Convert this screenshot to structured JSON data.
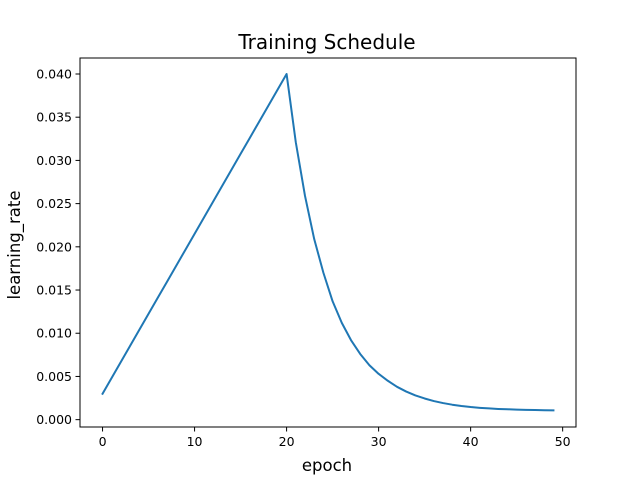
{
  "chart_data": {
    "type": "line",
    "title": "Training Schedule",
    "xlabel": "epoch",
    "ylabel": "learning_rate",
    "xlim": [
      -2.45,
      51.45
    ],
    "ylim": [
      -0.00085,
      0.04185
    ],
    "xticks": [
      0,
      10,
      20,
      30,
      40,
      50
    ],
    "xtick_labels": [
      "0",
      "10",
      "20",
      "30",
      "40",
      "50"
    ],
    "yticks": [
      0.0,
      0.005,
      0.01,
      0.015,
      0.02,
      0.025,
      0.03,
      0.035,
      0.04
    ],
    "ytick_labels": [
      "0.000",
      "0.005",
      "0.010",
      "0.015",
      "0.020",
      "0.025",
      "0.030",
      "0.035",
      "0.040"
    ],
    "grid": false,
    "series": [
      {
        "color": "#1f77b4",
        "x": [
          0,
          1,
          2,
          3,
          4,
          5,
          6,
          7,
          8,
          9,
          10,
          11,
          12,
          13,
          14,
          15,
          16,
          17,
          18,
          19,
          20,
          21,
          22,
          23,
          24,
          25,
          26,
          27,
          28,
          29,
          30,
          31,
          32,
          33,
          34,
          35,
          36,
          37,
          38,
          39,
          40,
          41,
          42,
          43,
          44,
          45,
          46,
          47,
          48,
          49
        ],
        "y": [
          0.003,
          0.00485,
          0.0067,
          0.00855,
          0.0104,
          0.01225,
          0.0141,
          0.01595,
          0.0178,
          0.01965,
          0.0215,
          0.02335,
          0.0252,
          0.02705,
          0.0289,
          0.03075,
          0.0326,
          0.03445,
          0.0363,
          0.03815,
          0.04,
          0.0321,
          0.0259,
          0.0209,
          0.017,
          0.0137,
          0.0112,
          0.0092,
          0.0076,
          0.0063,
          0.0053,
          0.0045,
          0.0038,
          0.00325,
          0.0028,
          0.00245,
          0.00215,
          0.00192,
          0.00173,
          0.00158,
          0.00146,
          0.00137,
          0.0013,
          0.00124,
          0.0012,
          0.00116,
          0.00113,
          0.00111,
          0.00109,
          0.00107
        ]
      }
    ]
  }
}
